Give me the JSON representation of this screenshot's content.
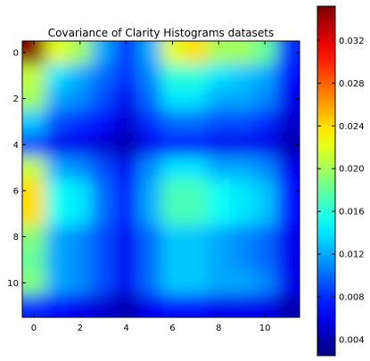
{
  "chart_data": {
    "type": "heatmap",
    "title": "Covariance of Clarity Histograms datasets",
    "xlabel": "",
    "ylabel": "",
    "x_ticks": [
      0,
      2,
      4,
      6,
      8,
      10
    ],
    "y_ticks": [
      0,
      2,
      4,
      6,
      8,
      10
    ],
    "colorbar_ticks": [
      0.004,
      0.008,
      0.012,
      0.016,
      0.02,
      0.024,
      0.028,
      0.032
    ],
    "colorbar_tick_labels": [
      "0.004",
      "0.008",
      "0.012",
      "0.016",
      "0.020",
      "0.024",
      "0.028",
      "0.032"
    ],
    "vmin": 0.0025,
    "vmax": 0.0352,
    "colormap": "jet",
    "interpolation": "smooth",
    "grid": false,
    "rows": 12,
    "cols": 12,
    "values": [
      [
        0.035,
        0.022,
        0.02,
        0.012,
        0.008,
        0.012,
        0.022,
        0.024,
        0.02,
        0.02,
        0.018,
        0.008
      ],
      [
        0.021,
        0.014,
        0.012,
        0.01,
        0.008,
        0.011,
        0.016,
        0.016,
        0.014,
        0.013,
        0.012,
        0.007
      ],
      [
        0.02,
        0.012,
        0.011,
        0.009,
        0.006,
        0.01,
        0.014,
        0.014,
        0.012,
        0.012,
        0.011,
        0.006
      ],
      [
        0.013,
        0.009,
        0.008,
        0.007,
        0.005,
        0.008,
        0.01,
        0.01,
        0.009,
        0.009,
        0.008,
        0.005
      ],
      [
        0.009,
        0.006,
        0.006,
        0.005,
        0.004,
        0.006,
        0.007,
        0.007,
        0.006,
        0.006,
        0.006,
        0.004
      ],
      [
        0.021,
        0.012,
        0.011,
        0.009,
        0.006,
        0.011,
        0.014,
        0.014,
        0.012,
        0.012,
        0.011,
        0.006
      ],
      [
        0.024,
        0.015,
        0.014,
        0.01,
        0.007,
        0.012,
        0.017,
        0.017,
        0.015,
        0.014,
        0.013,
        0.007
      ],
      [
        0.024,
        0.015,
        0.014,
        0.01,
        0.007,
        0.012,
        0.017,
        0.017,
        0.015,
        0.014,
        0.013,
        0.007
      ],
      [
        0.019,
        0.012,
        0.011,
        0.009,
        0.006,
        0.01,
        0.013,
        0.013,
        0.012,
        0.011,
        0.01,
        0.006
      ],
      [
        0.018,
        0.012,
        0.011,
        0.009,
        0.006,
        0.01,
        0.013,
        0.013,
        0.012,
        0.011,
        0.01,
        0.006
      ],
      [
        0.019,
        0.012,
        0.011,
        0.009,
        0.006,
        0.01,
        0.013,
        0.013,
        0.012,
        0.012,
        0.011,
        0.006
      ],
      [
        0.008,
        0.007,
        0.006,
        0.005,
        0.004,
        0.006,
        0.007,
        0.007,
        0.006,
        0.006,
        0.006,
        0.004
      ]
    ]
  }
}
